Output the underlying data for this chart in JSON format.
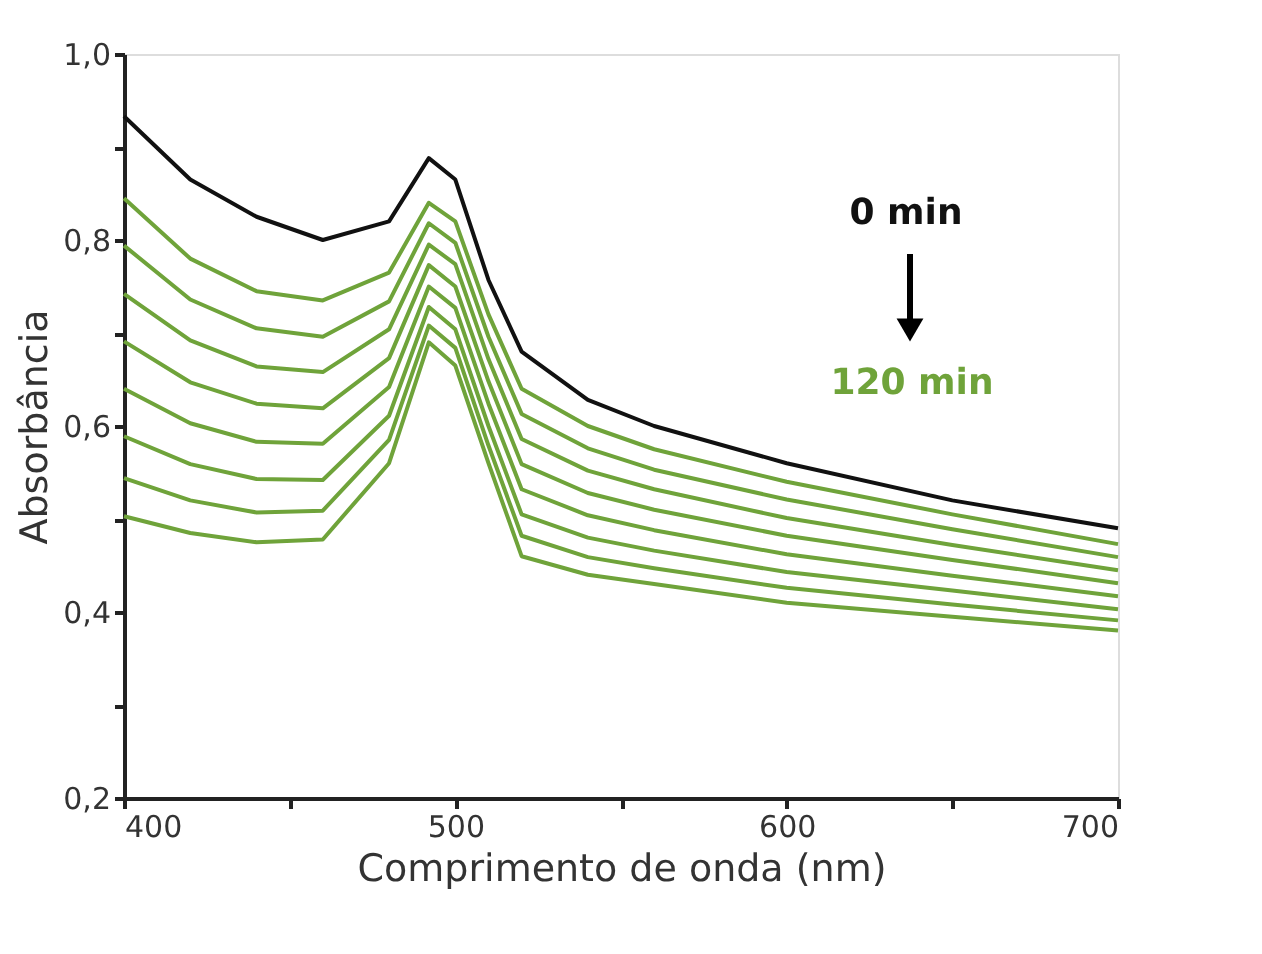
{
  "chart_data": {
    "type": "line",
    "xlabel": "Comprimento de onda (nm)",
    "ylabel": "Absorbância",
    "x": [
      400,
      420,
      440,
      460,
      480,
      492,
      500,
      510,
      520,
      540,
      560,
      600,
      650,
      700
    ],
    "series": [
      {
        "color": "#111111",
        "values": [
          0.933,
          0.865,
          0.825,
          0.8,
          0.82,
          0.888,
          0.865,
          0.757,
          0.68,
          0.628,
          0.6,
          0.56,
          0.52,
          0.49
        ]
      },
      {
        "color": "#6fa33a",
        "values": [
          0.845,
          0.78,
          0.745,
          0.735,
          0.765,
          0.84,
          0.82,
          0.72,
          0.64,
          0.6,
          0.575,
          0.54,
          0.505,
          0.473
        ]
      },
      {
        "color": "#6fa33a",
        "values": [
          0.794,
          0.736,
          0.705,
          0.696,
          0.734,
          0.818,
          0.797,
          0.696,
          0.613,
          0.576,
          0.553,
          0.521,
          0.489,
          0.459
        ]
      },
      {
        "color": "#6fa33a",
        "values": [
          0.742,
          0.692,
          0.664,
          0.658,
          0.704,
          0.795,
          0.774,
          0.672,
          0.586,
          0.552,
          0.532,
          0.501,
          0.472,
          0.445
        ]
      },
      {
        "color": "#6fa33a",
        "values": [
          0.691,
          0.647,
          0.624,
          0.619,
          0.673,
          0.773,
          0.75,
          0.648,
          0.559,
          0.528,
          0.51,
          0.482,
          0.456,
          0.431
        ]
      },
      {
        "color": "#6fa33a",
        "values": [
          0.64,
          0.603,
          0.583,
          0.581,
          0.642,
          0.75,
          0.727,
          0.624,
          0.532,
          0.504,
          0.488,
          0.462,
          0.439,
          0.417
        ]
      },
      {
        "color": "#6fa33a",
        "values": [
          0.589,
          0.559,
          0.543,
          0.542,
          0.611,
          0.728,
          0.704,
          0.6,
          0.505,
          0.48,
          0.466,
          0.443,
          0.423,
          0.403
        ]
      },
      {
        "color": "#6fa33a",
        "values": [
          0.544,
          0.52,
          0.507,
          0.509,
          0.585,
          0.708,
          0.684,
          0.579,
          0.482,
          0.459,
          0.447,
          0.426,
          0.408,
          0.391
        ]
      },
      {
        "color": "#6fa33a",
        "values": [
          0.503,
          0.485,
          0.475,
          0.478,
          0.56,
          0.69,
          0.665,
          0.56,
          0.46,
          0.44,
          0.43,
          0.41,
          0.395,
          0.38
        ]
      }
    ],
    "xlim": [
      400,
      700
    ],
    "xticks": [
      400,
      {
        "value": 450,
        "label": null
      },
      500,
      {
        "value": 550,
        "label": null
      },
      600,
      {
        "value": 650,
        "label": null
      },
      700
    ],
    "ylim": [
      0.2,
      1.0
    ],
    "yticks": [
      {
        "value": 0.2,
        "label": "0,2"
      },
      {
        "value": 0.3,
        "label": null
      },
      {
        "value": 0.4,
        "label": "0,4"
      },
      {
        "value": 0.5,
        "label": null
      },
      {
        "value": 0.6,
        "label": "0,6"
      },
      {
        "value": 0.7,
        "label": null
      },
      {
        "value": 0.8,
        "label": "0,8"
      },
      {
        "value": 0.9,
        "label": null
      },
      {
        "value": 1.0,
        "label": "1,0"
      }
    ],
    "annotations": [
      "0 min",
      "120 min"
    ],
    "grid": false,
    "legend": false,
    "marker": "none",
    "line_style": "solid"
  }
}
